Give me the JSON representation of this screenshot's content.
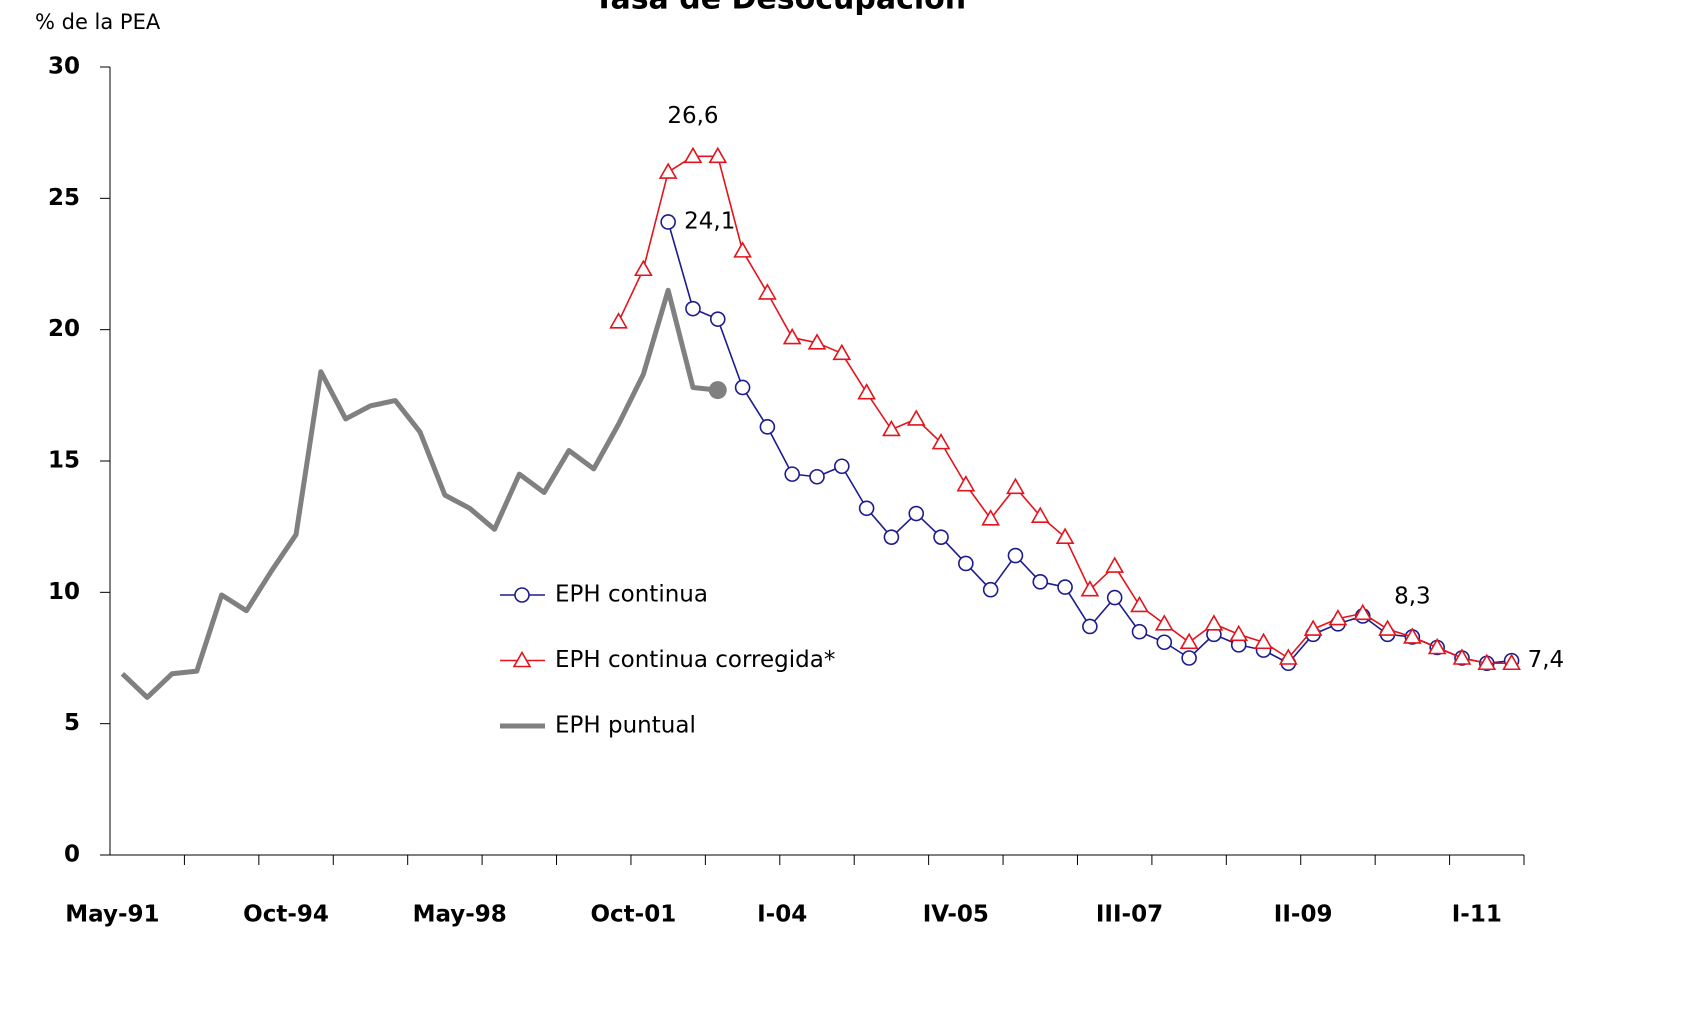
{
  "chart_data": {
    "type": "line",
    "title": "Tasa de Desocupación",
    "y_label": "% de la PEA",
    "categories": [
      "May-91",
      null,
      null,
      null,
      null,
      null,
      null,
      "Oct-94",
      null,
      null,
      null,
      null,
      null,
      null,
      "May-98",
      null,
      null,
      null,
      null,
      null,
      null,
      "Oct-01",
      null,
      null,
      null,
      null,
      null,
      "I-04",
      null,
      null,
      null,
      null,
      null,
      null,
      "IV-05",
      null,
      null,
      null,
      null,
      null,
      null,
      "III-07",
      null,
      null,
      null,
      null,
      null,
      null,
      "II-09",
      null,
      null,
      null,
      null,
      null,
      null,
      "I-11",
      null
    ],
    "series": [
      {
        "name": "EPH continua",
        "color": "#1c1c8e",
        "marker": "circle",
        "values": [
          null,
          null,
          null,
          null,
          null,
          null,
          null,
          null,
          null,
          null,
          null,
          null,
          null,
          null,
          null,
          null,
          null,
          null,
          null,
          null,
          null,
          null,
          24.1,
          20.8,
          20.4,
          17.8,
          16.3,
          14.5,
          14.4,
          14.8,
          13.2,
          12.1,
          13.0,
          12.1,
          11.1,
          10.1,
          11.4,
          10.4,
          10.2,
          8.7,
          9.8,
          8.5,
          8.1,
          7.5,
          8.4,
          8.0,
          7.8,
          7.3,
          8.4,
          8.8,
          9.1,
          8.4,
          8.3,
          7.9,
          7.5,
          7.3,
          7.4
        ],
        "value_labels": [
          null,
          null,
          null,
          null,
          null,
          null,
          null,
          null,
          null,
          null,
          null,
          null,
          null,
          null,
          null,
          null,
          null,
          null,
          null,
          null,
          null,
          null,
          "24,1",
          null,
          null,
          null,
          null,
          null,
          null,
          null,
          null,
          null,
          null,
          null,
          null,
          null,
          null,
          null,
          null,
          null,
          null,
          null,
          null,
          null,
          null,
          null,
          null,
          null,
          null,
          null,
          null,
          null,
          "8,3",
          null,
          null,
          null,
          "7,4"
        ]
      },
      {
        "name": "EPH continua corregida*",
        "color": "#e3141c",
        "marker": "triangle",
        "values": [
          null,
          null,
          null,
          null,
          null,
          null,
          null,
          null,
          null,
          null,
          null,
          null,
          null,
          null,
          null,
          null,
          null,
          null,
          null,
          null,
          20.3,
          22.3,
          26.0,
          26.6,
          26.6,
          23.0,
          21.4,
          19.7,
          19.5,
          19.1,
          17.6,
          16.2,
          16.6,
          15.7,
          14.1,
          12.8,
          14.0,
          12.9,
          12.1,
          10.1,
          11.0,
          9.5,
          8.8,
          8.1,
          8.8,
          8.4,
          8.1,
          7.5,
          8.6,
          9.0,
          9.2,
          8.6,
          8.3,
          7.9,
          7.5,
          7.3,
          7.3
        ],
        "value_labels": [
          null,
          null,
          null,
          null,
          null,
          null,
          null,
          null,
          null,
          null,
          null,
          null,
          null,
          null,
          null,
          null,
          null,
          null,
          null,
          null,
          null,
          null,
          null,
          "26,6",
          null,
          null,
          null,
          null,
          null,
          null,
          null,
          null,
          null,
          null,
          null,
          null,
          null,
          null,
          null,
          null,
          null,
          null,
          null,
          null,
          null,
          null,
          null,
          null,
          null,
          null,
          null,
          null,
          null,
          null,
          null,
          null,
          null
        ]
      },
      {
        "name": "EPH puntual",
        "color": "#808080",
        "marker": "none",
        "end_marker": true,
        "values": [
          6.9,
          6.0,
          6.9,
          7.0,
          9.9,
          9.3,
          10.8,
          12.2,
          18.4,
          16.6,
          17.1,
          17.3,
          16.1,
          13.7,
          13.2,
          12.4,
          14.5,
          13.8,
          15.4,
          14.7,
          16.4,
          18.3,
          21.5,
          17.8,
          17.7,
          null,
          null,
          null,
          null,
          null,
          null,
          null,
          null,
          null,
          null,
          null,
          null,
          null,
          null,
          null,
          null,
          null,
          null,
          null,
          null,
          null,
          null,
          null,
          null,
          null,
          null,
          null,
          null,
          null,
          null,
          null,
          null
        ]
      }
    ],
    "ylim": [
      0,
      30
    ],
    "yticks": [
      0,
      5,
      10,
      15,
      20,
      25,
      30
    ],
    "grid": false
  }
}
